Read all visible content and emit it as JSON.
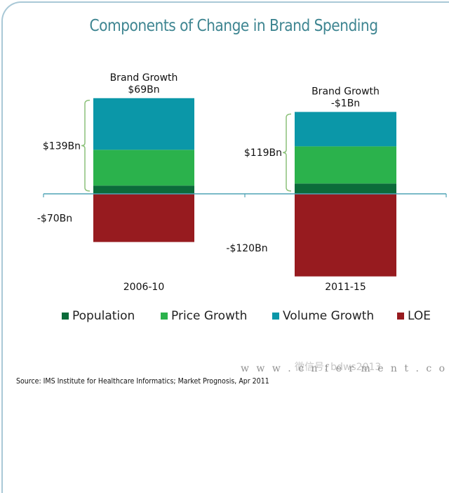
{
  "chart_data": {
    "type": "bar",
    "stacked": true,
    "title": "Components of Change in Brand Spending",
    "xlabel": "",
    "ylabel": "",
    "categories": [
      "2006-10",
      "2011-15"
    ],
    "series": [
      {
        "name": "Population",
        "color": "#0b6b3a",
        "values": [
          12,
          15
        ]
      },
      {
        "name": "Price Growth",
        "color": "#2bb24c",
        "values": [
          52,
          54
        ]
      },
      {
        "name": "Volume Growth",
        "color": "#0b97a8",
        "values": [
          75,
          50
        ]
      },
      {
        "name": "LOE",
        "color": "#971b1f",
        "values": [
          -70,
          -120
        ]
      }
    ],
    "positive_totals": [
      139,
      119
    ],
    "positive_total_labels": [
      "$139Bn",
      "$119Bn"
    ],
    "negative_labels": [
      "-$70Bn",
      "-$120Bn"
    ],
    "annotations": [
      {
        "line1": "Brand Growth",
        "line2": "$69Bn"
      },
      {
        "line1": "Brand Growth",
        "line2": "-$1Bn"
      }
    ],
    "ylim": [
      -125,
      145
    ],
    "grid": false,
    "legend_position": "bottom"
  },
  "legend": [
    {
      "label": "Population",
      "color": "#0b6b3a"
    },
    {
      "label": "Price Growth",
      "color": "#2bb24c"
    },
    {
      "label": "Volume Growth",
      "color": "#0b97a8"
    },
    {
      "label": "LOE",
      "color": "#971b1f"
    }
  ],
  "source": "Source: IMS Institute for Healthcare Informatics; Market Prognosis, Apr 2011",
  "watermark": {
    "url": "w w w . c n f e r m e n t . c o m",
    "overlay": "微信号: bdws2013"
  },
  "colors": {
    "axis": "#4fa3b5",
    "brace": "#8cc17a",
    "title": "#3e8591"
  }
}
